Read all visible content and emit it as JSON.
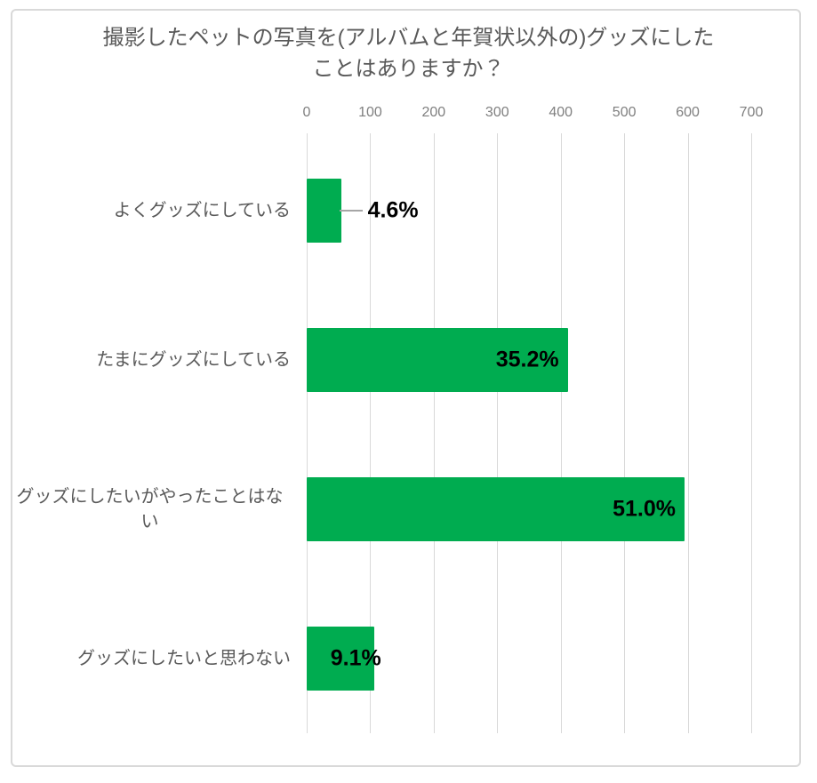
{
  "chart_data": {
    "type": "bar",
    "orientation": "horizontal",
    "title": "撮影したペットの写真を(アルバムと年賀状以外の)グッズにしたことはありますか？",
    "categories": [
      "よくグッズにしている",
      "たまにグッズにしている",
      "グッズにしたいがやったことはない",
      "グッズにしたいと思わない"
    ],
    "values": [
      54,
      411,
      595,
      106
    ],
    "value_labels": [
      "4.6%",
      "35.2%",
      "51.0%",
      "9.1%"
    ],
    "xlabel": "",
    "ylabel": "",
    "axis": {
      "position": "top",
      "min": 0,
      "max": 700,
      "step": 100,
      "tick_labels": [
        "0",
        "100",
        "200",
        "300",
        "400",
        "500",
        "600",
        "700"
      ]
    },
    "grid": true,
    "legend": false,
    "colors": {
      "bar": "#00AC50",
      "grid": "#d9d9d9",
      "title": "#595959",
      "category_label": "#595959",
      "tick_label": "#7f7f7f",
      "data_label": "#000000",
      "leader_line": "#a6a6a6",
      "card_border": "#d9d9d9"
    }
  }
}
